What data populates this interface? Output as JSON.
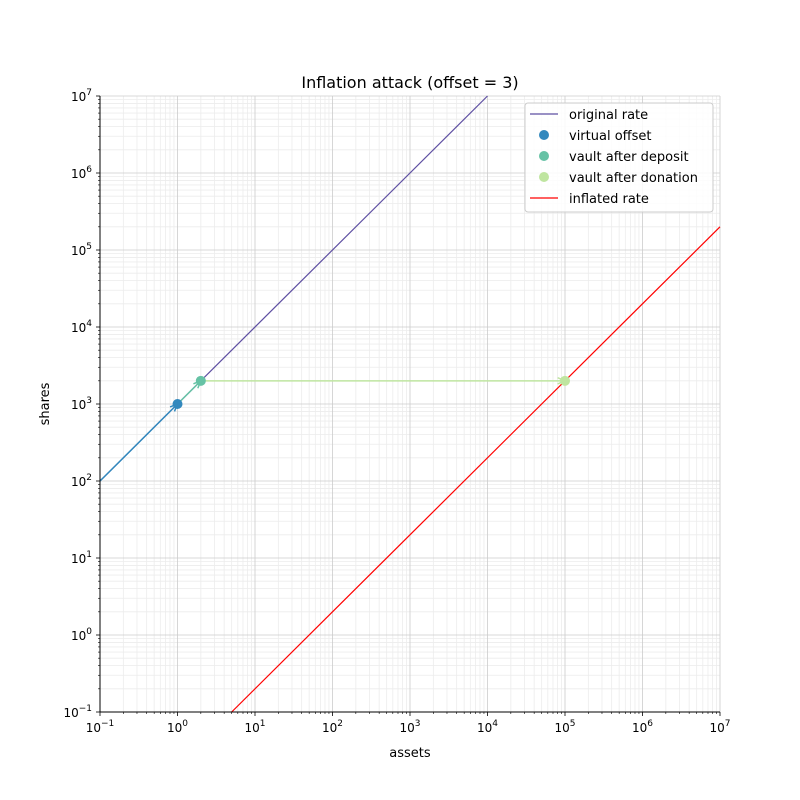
{
  "chart_data": {
    "type": "line",
    "title": "Inflation attack (offset = 3)",
    "xlabel": "assets",
    "ylabel": "shares",
    "xscale": "log",
    "yscale": "log",
    "xlim": [
      0.1,
      10000000
    ],
    "ylim": [
      0.1,
      10000000
    ],
    "x_tick_exponents": [
      -1,
      0,
      1,
      2,
      3,
      4,
      5,
      6,
      7
    ],
    "y_tick_exponents": [
      -1,
      0,
      1,
      2,
      3,
      4,
      5,
      6,
      7
    ],
    "tick_base": "10",
    "grid": "major and minor",
    "legend_position": "top-right",
    "series": [
      {
        "name": "original rate",
        "kind": "line",
        "color": "#5e4fa2",
        "x": [
          0.1,
          10000000
        ],
        "y": [
          100,
          10000000000
        ]
      },
      {
        "name": "virtual offset",
        "kind": "scatter",
        "color": "#3288bd",
        "x": [
          1
        ],
        "y": [
          1000
        ]
      },
      {
        "name": "vault after deposit",
        "kind": "scatter",
        "color": "#66c2a5",
        "x": [
          2
        ],
        "y": [
          2000
        ]
      },
      {
        "name": "vault after donation",
        "kind": "scatter",
        "color": "#bfe5a0",
        "x": [
          100002
        ],
        "y": [
          2000
        ]
      },
      {
        "name": "inflated rate",
        "kind": "line",
        "color": "#ff0000",
        "x": [
          0.1,
          10000000
        ],
        "y": [
          0.002,
          200000
        ]
      }
    ],
    "arrows": [
      {
        "from": [
          0.1,
          100
        ],
        "to": [
          1,
          1000
        ],
        "color": "#3288bd"
      },
      {
        "from": [
          1,
          1000
        ],
        "to": [
          2,
          2000
        ],
        "color": "#66c2a5"
      },
      {
        "from": [
          2,
          2000
        ],
        "to": [
          100002,
          2000
        ],
        "color": "#bfe5a0"
      }
    ]
  }
}
